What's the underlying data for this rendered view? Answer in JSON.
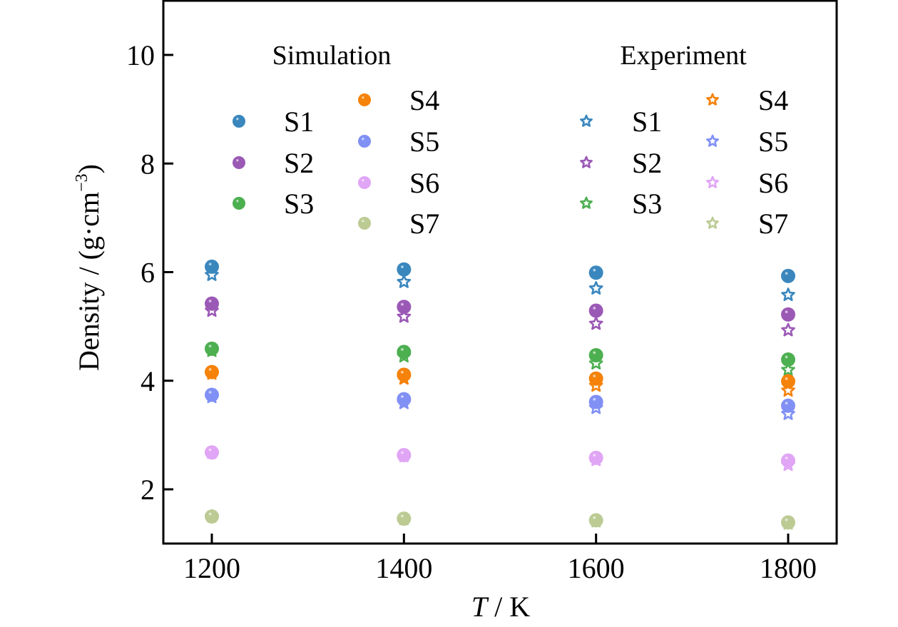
{
  "chart_data": {
    "type": "scatter",
    "title": "",
    "xlabel": "T / K",
    "xlabel_italic_part": "T",
    "xlabel_rest": " / K",
    "ylabel": "Density / (g·cm−3)",
    "ylabel_main": "Density / (g·cm",
    "ylabel_sup": "−3",
    "ylabel_close": ")",
    "xlim": [
      1150,
      1850
    ],
    "ylim": [
      1.0,
      11.0
    ],
    "x_ticks": [
      1200,
      1400,
      1600,
      1800
    ],
    "x_tick_labels": [
      "1200",
      "1400",
      "1600",
      "1800"
    ],
    "y_ticks": [
      2,
      4,
      6,
      8,
      10
    ],
    "y_tick_labels": [
      "2",
      "4",
      "6",
      "8",
      "10"
    ],
    "grid": false,
    "x": [
      1200,
      1400,
      1600,
      1800
    ],
    "legend_groups": [
      {
        "title": "Simulation",
        "marker": "sphere",
        "position": "top-left"
      },
      {
        "title": "Experiment",
        "marker": "star",
        "position": "top-right"
      }
    ],
    "series": [
      {
        "name": "S1",
        "color": "#3a87be",
        "simulation": [
          6.1,
          6.05,
          5.99,
          5.93
        ],
        "experiment": [
          5.95,
          5.82,
          5.7,
          5.58
        ]
      },
      {
        "name": "S2",
        "color": "#9b59b6",
        "simulation": [
          5.42,
          5.36,
          5.29,
          5.22
        ],
        "experiment": [
          5.29,
          5.18,
          5.05,
          4.93
        ]
      },
      {
        "name": "S3",
        "color": "#4caf50",
        "simulation": [
          4.59,
          4.53,
          4.47,
          4.39
        ],
        "experiment": [
          4.55,
          4.45,
          4.32,
          4.2
        ]
      },
      {
        "name": "S4",
        "color": "#f5820a",
        "simulation": [
          4.16,
          4.11,
          4.04,
          3.99
        ],
        "experiment": [
          4.13,
          4.04,
          3.91,
          3.82
        ]
      },
      {
        "name": "S5",
        "color": "#8090f5",
        "simulation": [
          3.74,
          3.66,
          3.61,
          3.54
        ],
        "experiment": [
          3.7,
          3.59,
          3.5,
          3.39
        ]
      },
      {
        "name": "S6",
        "color": "#e0a5f5",
        "simulation": [
          2.68,
          2.63,
          2.58,
          2.53
        ],
        "experiment": [
          2.67,
          2.61,
          2.54,
          2.45
        ]
      },
      {
        "name": "S7",
        "color": "#bccb94",
        "simulation": [
          1.5,
          1.46,
          1.43,
          1.39
        ],
        "experiment": [
          1.5,
          1.45,
          1.41,
          1.37
        ]
      }
    ]
  }
}
